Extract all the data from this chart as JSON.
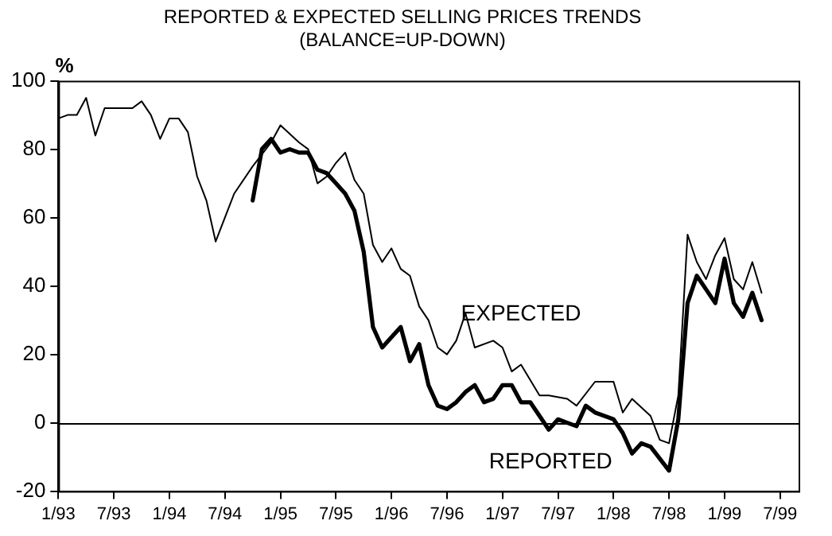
{
  "chart_data": {
    "type": "line",
    "title": "REPORTED & EXPECTED SELLING PRICES TRENDS",
    "subtitle": "(BALANCE=UP-DOWN)",
    "ylabel": "%",
    "xlim": [
      "1993-01",
      "1999-09"
    ],
    "xticks": [
      {
        "value": "1993-01",
        "label": "1/93"
      },
      {
        "value": "1993-07",
        "label": "7/93"
      },
      {
        "value": "1994-01",
        "label": "1/94"
      },
      {
        "value": "1994-07",
        "label": "7/94"
      },
      {
        "value": "1995-01",
        "label": "1/95"
      },
      {
        "value": "1995-07",
        "label": "7/95"
      },
      {
        "value": "1996-01",
        "label": "1/96"
      },
      {
        "value": "1996-07",
        "label": "7/96"
      },
      {
        "value": "1997-01",
        "label": "1/97"
      },
      {
        "value": "1997-07",
        "label": "7/97"
      },
      {
        "value": "1998-01",
        "label": "1/98"
      },
      {
        "value": "1998-07",
        "label": "7/98"
      },
      {
        "value": "1999-01",
        "label": "1/99"
      },
      {
        "value": "1999-07",
        "label": "7/99"
      }
    ],
    "ylim": [
      -20,
      100
    ],
    "yticks": [
      -20,
      0,
      20,
      40,
      60,
      80,
      100
    ],
    "grid": false,
    "legend": false,
    "marker": "none",
    "line_style": "solid",
    "ref_lines": [
      {
        "axis": "y",
        "value": 0,
        "color": "#000000"
      }
    ],
    "series": [
      {
        "name": "EXPECTED",
        "color": "#000000",
        "x": [
          "1993-01",
          "1993-02",
          "1993-03",
          "1993-04",
          "1993-05",
          "1993-06",
          "1993-07",
          "1993-09",
          "1993-10",
          "1993-11",
          "1993-12",
          "1994-01",
          "1994-02",
          "1994-03",
          "1994-04",
          "1994-05",
          "1994-06",
          "1994-08",
          "1994-10",
          "1994-12",
          "1995-01",
          "1995-03",
          "1995-04",
          "1995-05",
          "1995-06",
          "1995-07",
          "1995-08",
          "1995-09",
          "1995-10",
          "1995-11",
          "1995-12",
          "1996-01",
          "1996-02",
          "1996-03",
          "1996-04",
          "1996-05",
          "1996-06",
          "1996-07",
          "1996-08",
          "1996-09",
          "1996-10",
          "1996-12",
          "1997-01",
          "1997-02",
          "1997-03",
          "1997-05",
          "1997-06",
          "1997-08",
          "1997-09",
          "1997-11",
          "1998-01",
          "1998-02",
          "1998-03",
          "1998-05",
          "1998-06",
          "1998-07",
          "1998-08",
          "1998-09",
          "1998-10",
          "1998-11",
          "1998-12",
          "1999-01",
          "1999-02",
          "1999-03",
          "1999-04",
          "1999-05"
        ],
        "values": [
          89,
          90,
          90,
          95,
          84,
          92,
          92,
          92,
          94,
          90,
          83,
          89,
          89,
          85,
          72,
          65,
          53,
          67,
          75,
          82,
          87,
          82,
          80,
          70,
          72,
          76,
          79,
          71,
          67,
          52,
          47,
          51,
          45,
          43,
          34,
          30,
          22,
          20,
          24,
          32,
          22,
          24,
          22,
          15,
          17,
          8,
          8,
          7,
          5,
          12,
          12,
          3,
          7,
          2,
          -5,
          -6,
          8,
          55,
          47,
          42,
          49,
          54,
          42,
          39,
          47,
          38
        ]
      },
      {
        "name": "REPORTED",
        "color": "#000000",
        "x": [
          "1994-10",
          "1994-11",
          "1994-12",
          "1995-01",
          "1995-02",
          "1995-03",
          "1995-04",
          "1995-05",
          "1995-06",
          "1995-07",
          "1995-08",
          "1995-09",
          "1995-10",
          "1995-11",
          "1995-12",
          "1996-01",
          "1996-02",
          "1996-03",
          "1996-04",
          "1996-05",
          "1996-06",
          "1996-07",
          "1996-08",
          "1996-09",
          "1996-10",
          "1996-11",
          "1996-12",
          "1997-01",
          "1997-02",
          "1997-03",
          "1997-04",
          "1997-05",
          "1997-06",
          "1997-07",
          "1997-08",
          "1997-09",
          "1997-10",
          "1997-11",
          "1998-01",
          "1998-02",
          "1998-03",
          "1998-04",
          "1998-05",
          "1998-07",
          "1998-08",
          "1998-09",
          "1998-10",
          "1998-11",
          "1998-12",
          "1999-01",
          "1999-02",
          "1999-03",
          "1999-04",
          "1999-05"
        ],
        "values": [
          65,
          80,
          83,
          79,
          80,
          79,
          79,
          74,
          73,
          70,
          67,
          62,
          50,
          28,
          22,
          25,
          28,
          18,
          23,
          11,
          5,
          4,
          6,
          9,
          11,
          6,
          7,
          11,
          11,
          6,
          6,
          2,
          -2,
          1,
          0,
          -1,
          5,
          3,
          1,
          -3,
          -9,
          -6,
          -7,
          -14,
          1,
          35,
          43,
          39,
          35,
          48,
          35,
          31,
          38,
          30
        ]
      }
    ]
  }
}
